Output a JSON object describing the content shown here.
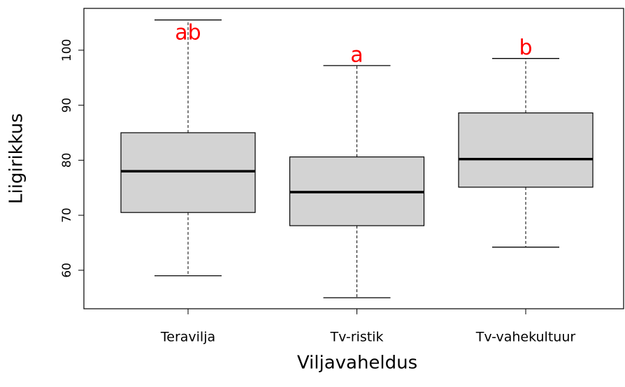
{
  "chart_data": {
    "type": "box",
    "x_label": "Viljavaheldus",
    "y_label": "Liigirikkus",
    "categories": [
      "Teravilja",
      "Tv-ristik",
      "Tv-vahekultuur"
    ],
    "boxes": [
      {
        "min": 59.0,
        "q1": 70.5,
        "median": 78.0,
        "q3": 85.0,
        "max": 105.5
      },
      {
        "min": 55.0,
        "q1": 68.1,
        "median": 74.2,
        "q3": 80.6,
        "max": 97.2
      },
      {
        "min": 64.2,
        "q1": 75.1,
        "median": 80.2,
        "q3": 88.6,
        "max": 98.5
      }
    ],
    "annotations": [
      "ab",
      "a",
      "b"
    ],
    "annotation_color": "#ff0000",
    "box_color": "#d3d3d3",
    "ylim": [
      53.0,
      107.6
    ],
    "yticks": [
      60,
      70,
      80,
      90,
      100
    ]
  }
}
